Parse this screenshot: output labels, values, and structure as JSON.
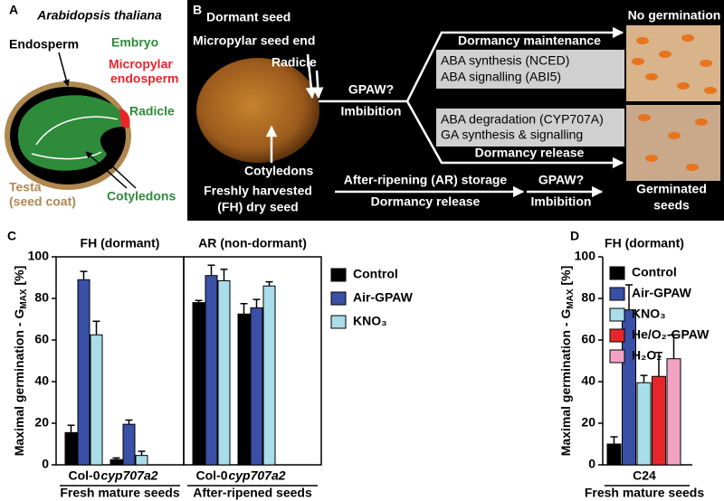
{
  "panel_a": {
    "letter": "A",
    "title": "Arabidopsis thaliana",
    "endosperm": "Endosperm",
    "embryo": "Embryo",
    "micropylar": [
      "Micropylar",
      "endosperm"
    ],
    "radicle": "Radicle",
    "testa": [
      "Testa",
      "(seed coat)"
    ],
    "cotyledons": "Cotyledons"
  },
  "panel_b": {
    "letter": "B",
    "dormant_seed": "Dormant seed",
    "micropylar_seed_end": "Micropylar seed end",
    "radicle": "Radicle",
    "cotyledons": "Cotyledons",
    "fresh_seed": [
      "Freshly harvested",
      "(FH) dry seed"
    ],
    "gpaw_1": "GPAW?",
    "imbibition_1": "Imbibition",
    "dormancy_maintenance": "Dormancy maintenance",
    "maintenance_factors": [
      "ABA synthesis (NCED)",
      "ABA signalling (ABI5)"
    ],
    "release_factors": [
      "ABA degradation (CYP707A)",
      "GA synthesis & signalling"
    ],
    "dormancy_release_1": "Dormancy release",
    "no_germination": "No germination",
    "after_ripening": "After-ripening (AR) storage",
    "dormancy_release_2": "Dormancy release",
    "gpaw_2": "GPAW?",
    "imbibition_2": "Imbibition",
    "germinated": [
      "Germinated",
      "seeds"
    ]
  },
  "chart_data": [
    {
      "type": "bar",
      "letter": "C",
      "ylabel": [
        "Maximal germination - G",
        "MAX",
        " [%]"
      ],
      "ylim": [
        0,
        100
      ],
      "yticks": [
        0,
        20,
        40,
        60,
        80,
        100
      ],
      "legend": "right",
      "series": [
        {
          "name": "Control",
          "color": "#000000"
        },
        {
          "name": "Air-GPAW",
          "color": "#3a4fa6"
        },
        {
          "name": "KNO₃",
          "color": "#a9dde9"
        }
      ],
      "facets": [
        {
          "title": "FH (dormant)",
          "categories": [
            "Col-0",
            "cyp707a2"
          ],
          "group_label": "Fresh mature seeds",
          "values": [
            [
              15.5,
              2.5
            ],
            [
              89,
              19.5
            ],
            [
              62.5,
              4.5
            ]
          ],
          "errors": [
            [
              3.5,
              0.8
            ],
            [
              4,
              2
            ],
            [
              6.5,
              2
            ]
          ]
        },
        {
          "title": "AR (non-dormant)",
          "categories": [
            "Col-0",
            "cyp707a2"
          ],
          "group_label": "After-ripened seeds",
          "values": [
            [
              78,
              72.5
            ],
            [
              91,
              75.5
            ],
            [
              88.5,
              86
            ]
          ],
          "errors": [
            [
              1,
              5
            ],
            [
              5,
              4
            ],
            [
              5.5,
              2
            ]
          ]
        }
      ]
    },
    {
      "type": "bar",
      "letter": "D",
      "title": "FH (dormant)",
      "ylabel": [
        "Maximal germination - G",
        "MAX",
        " [%]"
      ],
      "ylim": [
        0,
        100
      ],
      "yticks": [
        0,
        20,
        40,
        60,
        80,
        100
      ],
      "categories": [
        "C24"
      ],
      "group_label": "Fresh mature seeds",
      "series": [
        {
          "name": "Control",
          "color": "#000000",
          "values": [
            10
          ],
          "errors": [
            3.5
          ]
        },
        {
          "name": "Air-GPAW",
          "color": "#3a4fa6",
          "values": [
            74.5
          ],
          "errors": [
            12
          ]
        },
        {
          "name": "KNO₃",
          "color": "#a9dde9",
          "values": [
            39.5
          ],
          "errors": [
            3.5
          ]
        },
        {
          "name": "He/O₂-GPAW",
          "color": "#e8262a",
          "values": [
            42.5
          ],
          "errors": [
            11.5
          ]
        },
        {
          "name": "H₂O₂",
          "color": "#f2a3c4",
          "values": [
            51
          ],
          "errors": [
            11.5
          ]
        }
      ]
    }
  ]
}
